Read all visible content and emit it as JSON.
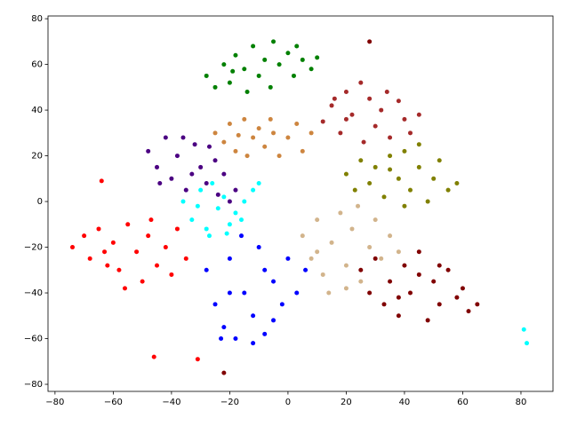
{
  "chart_data": {
    "type": "scatter",
    "xlim": [
      -82.4,
      91
    ],
    "ylim": [
      -83.1,
      81.2
    ],
    "xticks": [
      {
        "value": -80,
        "label": "−80"
      },
      {
        "value": -60,
        "label": "−60"
      },
      {
        "value": -40,
        "label": "−40"
      },
      {
        "value": -20,
        "label": "−20"
      },
      0,
      20,
      40,
      60,
      80
    ],
    "yticks": [
      {
        "value": -80,
        "label": "−80"
      },
      {
        "value": -60,
        "label": "−60"
      },
      {
        "value": -40,
        "label": "−40"
      },
      {
        "value": -20,
        "label": "−20"
      },
      0,
      20,
      40,
      60,
      80
    ],
    "series": [
      {
        "color": "#008000",
        "x": [
          -28,
          -25,
          -22,
          -20,
          -18,
          -15,
          -12,
          -10,
          -8,
          -5,
          -3,
          0,
          2,
          5,
          8,
          10,
          -14,
          -6,
          -19,
          3
        ],
        "y": [
          55,
          50,
          60,
          52,
          64,
          58,
          68,
          55,
          62,
          70,
          60,
          65,
          55,
          62,
          58,
          63,
          48,
          50,
          57,
          68
        ]
      },
      {
        "color": "#a52a2a",
        "x": [
          12,
          15,
          18,
          20,
          22,
          25,
          28,
          30,
          32,
          35,
          38,
          40,
          42,
          45,
          26,
          20,
          34,
          16
        ],
        "y": [
          35,
          42,
          30,
          48,
          38,
          52,
          45,
          33,
          40,
          28,
          44,
          36,
          30,
          38,
          26,
          36,
          48,
          45
        ]
      },
      {
        "color": "#cd853f",
        "x": [
          -25,
          -22,
          -20,
          -18,
          -15,
          -12,
          -10,
          -8,
          -5,
          -3,
          0,
          3,
          5,
          8,
          -14,
          -6,
          -17
        ],
        "y": [
          30,
          26,
          34,
          22,
          36,
          28,
          32,
          24,
          30,
          20,
          28,
          34,
          22,
          30,
          20,
          36,
          29
        ]
      },
      {
        "color": "#4b0082",
        "x": [
          -48,
          -45,
          -42,
          -40,
          -38,
          -35,
          -32,
          -30,
          -28,
          -25,
          -22,
          -20,
          -18,
          -44,
          -36,
          -27,
          -33,
          -24
        ],
        "y": [
          22,
          15,
          28,
          10,
          20,
          5,
          25,
          15,
          8,
          18,
          12,
          0,
          5,
          8,
          28,
          24,
          12,
          3
        ]
      },
      {
        "color": "#808000",
        "x": [
          20,
          23,
          25,
          28,
          30,
          33,
          35,
          38,
          40,
          42,
          45,
          48,
          50,
          52,
          55,
          58,
          45,
          35,
          40
        ],
        "y": [
          12,
          5,
          18,
          8,
          15,
          2,
          20,
          10,
          22,
          5,
          15,
          0,
          10,
          18,
          5,
          8,
          25,
          14,
          -2
        ]
      },
      {
        "color": "#00ffff",
        "x": [
          -36,
          -33,
          -30,
          -28,
          -26,
          -24,
          -22,
          -20,
          -18,
          -15,
          -12,
          -10,
          -27,
          -21,
          -31,
          -16,
          81,
          82
        ],
        "y": [
          0,
          -8,
          5,
          -12,
          8,
          -3,
          2,
          -10,
          -5,
          0,
          5,
          8,
          -15,
          -14,
          -2,
          -8,
          -56,
          -62
        ]
      },
      {
        "color": "#ff0000",
        "x": [
          -74,
          -70,
          -68,
          -65,
          -62,
          -60,
          -58,
          -55,
          -52,
          -50,
          -48,
          -45,
          -42,
          -40,
          -38,
          -35,
          -56,
          -47,
          -63,
          -64,
          -46,
          -31
        ],
        "y": [
          -20,
          -15,
          -25,
          -12,
          -28,
          -18,
          -30,
          -10,
          -22,
          -35,
          -15,
          -28,
          -20,
          -32,
          -12,
          -25,
          -38,
          -8,
          -22,
          9,
          -68,
          -69
        ]
      },
      {
        "color": "#0000ff",
        "x": [
          -28,
          -25,
          -22,
          -20,
          -18,
          -15,
          -12,
          -10,
          -8,
          -5,
          -2,
          0,
          3,
          6,
          -20,
          -12,
          -5,
          -16,
          -8,
          -23
        ],
        "y": [
          -30,
          -45,
          -55,
          -25,
          -60,
          -40,
          -50,
          -20,
          -58,
          -35,
          -45,
          -25,
          -40,
          -30,
          -40,
          -62,
          -52,
          -15,
          -30,
          -60
        ]
      },
      {
        "color": "#d2b48c",
        "x": [
          5,
          8,
          10,
          12,
          15,
          18,
          20,
          22,
          25,
          28,
          30,
          32,
          35,
          38,
          14,
          24,
          10,
          20
        ],
        "y": [
          -15,
          -25,
          -8,
          -32,
          -18,
          -5,
          -28,
          -12,
          -35,
          -20,
          -8,
          -25,
          -15,
          -22,
          -40,
          -2,
          -22,
          -38
        ]
      },
      {
        "color": "#800000",
        "x": [
          25,
          28,
          30,
          33,
          35,
          38,
          40,
          42,
          45,
          48,
          50,
          52,
          55,
          58,
          60,
          62,
          65,
          45,
          38,
          52,
          28,
          -22
        ],
        "y": [
          -30,
          -40,
          -25,
          -45,
          -35,
          -50,
          -28,
          -40,
          -22,
          -52,
          -35,
          -45,
          -30,
          -42,
          -38,
          -48,
          -45,
          -32,
          -42,
          -28,
          70,
          -75
        ]
      }
    ]
  }
}
